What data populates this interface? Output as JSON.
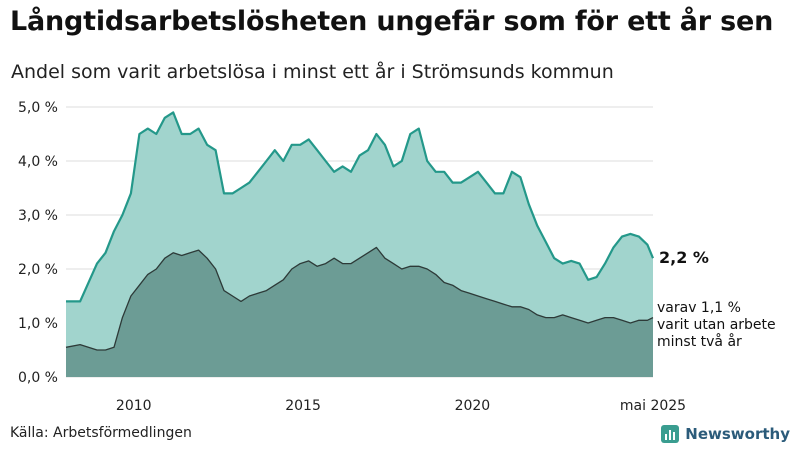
{
  "title": "Långtidsarbetslösheten ungefär som för ett år sen",
  "subtitle": "Andel som varit arbetslösa i minst ett år i Strömsunds kommun",
  "source": "Källa: Arbetsförmedlingen",
  "brand": "Newsworthy",
  "colors": {
    "area_total": "#a1d4cd",
    "line_total": "#24988a",
    "area_two_years": "#6c9c95",
    "line_two_years": "#2d3a38",
    "grid": "#dddddd",
    "brand_icon": "#3a9d90",
    "brand_text": "#2b5b7a"
  },
  "chart_data": {
    "type": "area",
    "y_ticks": [
      "0,0 %",
      "1,0 %",
      "2,0 %",
      "3,0 %",
      "4,0 %",
      "5,0 %"
    ],
    "x_ticks": [
      "2010",
      "2015",
      "2020",
      "maj 2025"
    ],
    "ylim": [
      0,
      5
    ],
    "xlim": [
      "2008-01",
      "2025-05"
    ],
    "end_label": "2,2 %",
    "annotation_lines": [
      "varav 1,1 %",
      "varit utan arbete",
      "minst två år"
    ],
    "series": [
      {
        "key": "total",
        "x": [
          "2008-01",
          "2008-06",
          "2008-12",
          "2009-03",
          "2009-06",
          "2009-09",
          "2009-12",
          "2010-03",
          "2010-06",
          "2010-09",
          "2010-12",
          "2011-03",
          "2011-06",
          "2011-09",
          "2011-12",
          "2012-03",
          "2012-06",
          "2012-09",
          "2012-12",
          "2013-03",
          "2013-06",
          "2013-09",
          "2013-12",
          "2014-03",
          "2014-06",
          "2014-09",
          "2014-12",
          "2015-03",
          "2015-06",
          "2015-09",
          "2015-12",
          "2016-03",
          "2016-06",
          "2016-09",
          "2016-12",
          "2017-03",
          "2017-06",
          "2017-09",
          "2017-12",
          "2018-03",
          "2018-06",
          "2018-09",
          "2018-12",
          "2019-03",
          "2019-06",
          "2019-09",
          "2019-12",
          "2020-03",
          "2020-06",
          "2020-09",
          "2020-12",
          "2021-03",
          "2021-06",
          "2021-09",
          "2021-12",
          "2022-03",
          "2022-06",
          "2022-09",
          "2022-12",
          "2023-03",
          "2023-06",
          "2023-09",
          "2023-12",
          "2024-03",
          "2024-06",
          "2024-09",
          "2024-12",
          "2025-03",
          "2025-05"
        ],
        "y": [
          1.4,
          1.4,
          2.1,
          2.3,
          2.7,
          3.0,
          3.4,
          4.5,
          4.6,
          4.5,
          4.8,
          4.9,
          4.5,
          4.5,
          4.6,
          4.3,
          4.2,
          3.4,
          3.4,
          3.5,
          3.6,
          3.8,
          4.0,
          4.2,
          4.0,
          4.3,
          4.3,
          4.4,
          4.2,
          4.0,
          3.8,
          3.9,
          3.8,
          4.1,
          4.2,
          4.5,
          4.3,
          3.9,
          4.0,
          4.5,
          4.6,
          4.0,
          3.8,
          3.8,
          3.6,
          3.6,
          3.7,
          3.8,
          3.6,
          3.4,
          3.4,
          3.8,
          3.7,
          3.2,
          2.8,
          2.5,
          2.2,
          2.1,
          2.15,
          2.1,
          1.8,
          1.85,
          2.1,
          2.4,
          2.6,
          2.65,
          2.6,
          2.45,
          2.2
        ]
      },
      {
        "key": "two_years",
        "x": [
          "2008-01",
          "2008-06",
          "2008-12",
          "2009-03",
          "2009-06",
          "2009-09",
          "2009-12",
          "2010-03",
          "2010-06",
          "2010-09",
          "2010-12",
          "2011-03",
          "2011-06",
          "2011-09",
          "2011-12",
          "2012-03",
          "2012-06",
          "2012-09",
          "2012-12",
          "2013-03",
          "2013-06",
          "2013-09",
          "2013-12",
          "2014-03",
          "2014-06",
          "2014-09",
          "2014-12",
          "2015-03",
          "2015-06",
          "2015-09",
          "2015-12",
          "2016-03",
          "2016-06",
          "2016-09",
          "2016-12",
          "2017-03",
          "2017-06",
          "2017-09",
          "2017-12",
          "2018-03",
          "2018-06",
          "2018-09",
          "2018-12",
          "2019-03",
          "2019-06",
          "2019-09",
          "2019-12",
          "2020-03",
          "2020-06",
          "2020-09",
          "2020-12",
          "2021-03",
          "2021-06",
          "2021-09",
          "2021-12",
          "2022-03",
          "2022-06",
          "2022-09",
          "2022-12",
          "2023-03",
          "2023-06",
          "2023-09",
          "2023-12",
          "2024-03",
          "2024-06",
          "2024-09",
          "2024-12",
          "2025-03",
          "2025-05"
        ],
        "y": [
          0.55,
          0.6,
          0.5,
          0.5,
          0.55,
          1.1,
          1.5,
          1.7,
          1.9,
          2.0,
          2.2,
          2.3,
          2.25,
          2.3,
          2.35,
          2.2,
          2.0,
          1.6,
          1.5,
          1.4,
          1.5,
          1.55,
          1.6,
          1.7,
          1.8,
          2.0,
          2.1,
          2.15,
          2.05,
          2.1,
          2.2,
          2.1,
          2.1,
          2.2,
          2.3,
          2.4,
          2.2,
          2.1,
          2.0,
          2.05,
          2.05,
          2.0,
          1.9,
          1.75,
          1.7,
          1.6,
          1.55,
          1.5,
          1.45,
          1.4,
          1.35,
          1.3,
          1.3,
          1.25,
          1.15,
          1.1,
          1.1,
          1.15,
          1.1,
          1.05,
          1.0,
          1.05,
          1.1,
          1.1,
          1.05,
          1.0,
          1.05,
          1.05,
          1.1
        ]
      }
    ]
  }
}
